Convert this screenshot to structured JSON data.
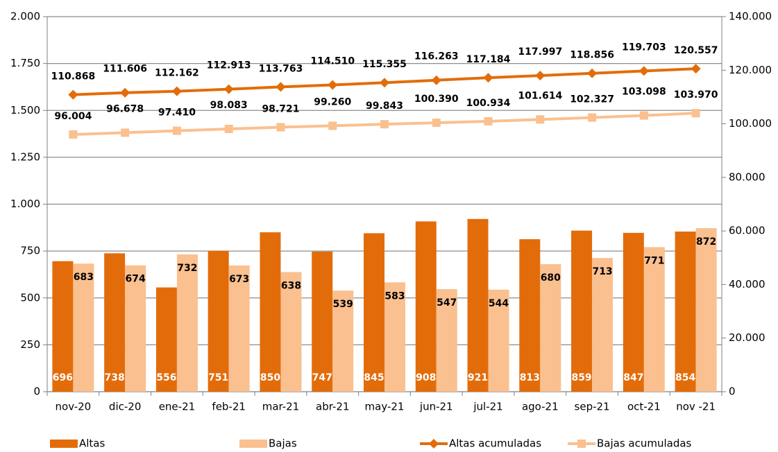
{
  "chart_data": {
    "type": "bar",
    "categories": [
      "nov-20",
      "dic-20",
      "ene-21",
      "feb-21",
      "mar-21",
      "abr-21",
      "may-21",
      "jun-21",
      "jul-21",
      "ago-21",
      "sep-21",
      "oct-21",
      "nov -21"
    ],
    "ylim": [
      0,
      2000
    ],
    "yticks": [
      0,
      250,
      500,
      750,
      {
        "value": 1000,
        "label": "1.000"
      },
      {
        "value": 1250,
        "label": "1.250"
      },
      {
        "value": 1500,
        "label": "1.500"
      },
      {
        "value": 1750,
        "label": "1.750"
      },
      {
        "value": 2000,
        "label": "2.000"
      }
    ],
    "y2lim": [
      0,
      140000
    ],
    "y2ticks": [
      0,
      {
        "value": 20000,
        "label": "20.000"
      },
      {
        "value": 40000,
        "label": "40.000"
      },
      {
        "value": 60000,
        "label": "60.000"
      },
      {
        "value": 80000,
        "label": "80.000"
      },
      {
        "value": 100000,
        "label": "100.000"
      },
      {
        "value": 120000,
        "label": "120.000"
      },
      {
        "value": 140000,
        "label": "140.000"
      }
    ],
    "grid": true,
    "legend": "bottom",
    "series": [
      {
        "name": "Altas",
        "type": "bar",
        "color": "#e36c0a",
        "values": [
          696,
          738,
          556,
          751,
          850,
          747,
          845,
          908,
          921,
          813,
          859,
          847,
          854
        ]
      },
      {
        "name": "Bajas",
        "type": "bar",
        "color": "#fac090",
        "values": [
          683,
          674,
          732,
          673,
          638,
          539,
          583,
          547,
          544,
          680,
          713,
          771,
          872
        ]
      },
      {
        "name": "Altas acumuladas",
        "type": "line",
        "axis": "y2",
        "marker": "diamond",
        "color": "#e36c0a",
        "values": [
          110868,
          111606,
          112162,
          112913,
          113763,
          114510,
          115355,
          116263,
          117184,
          117997,
          118856,
          119703,
          120557
        ],
        "value_labels": [
          "110.868",
          "111.606",
          "112.162",
          "112.913",
          "113.763",
          "114.510",
          "115.355",
          "116.263",
          "117.184",
          "117.997",
          "118.856",
          "119.703",
          "120.557"
        ]
      },
      {
        "name": "Bajas acumuladas",
        "type": "line",
        "axis": "y2",
        "marker": "square",
        "color": "#fac090",
        "values": [
          96004,
          96678,
          97410,
          98083,
          98721,
          99260,
          99843,
          100390,
          100934,
          101614,
          102327,
          103098,
          103970
        ],
        "value_labels": [
          "96.004",
          "96.678",
          "97.410",
          "98.083",
          "98.721",
          "99.260",
          "99.843",
          "100.390",
          "100.934",
          "101.614",
          "102.327",
          "103.098",
          "103.970"
        ]
      }
    ]
  }
}
